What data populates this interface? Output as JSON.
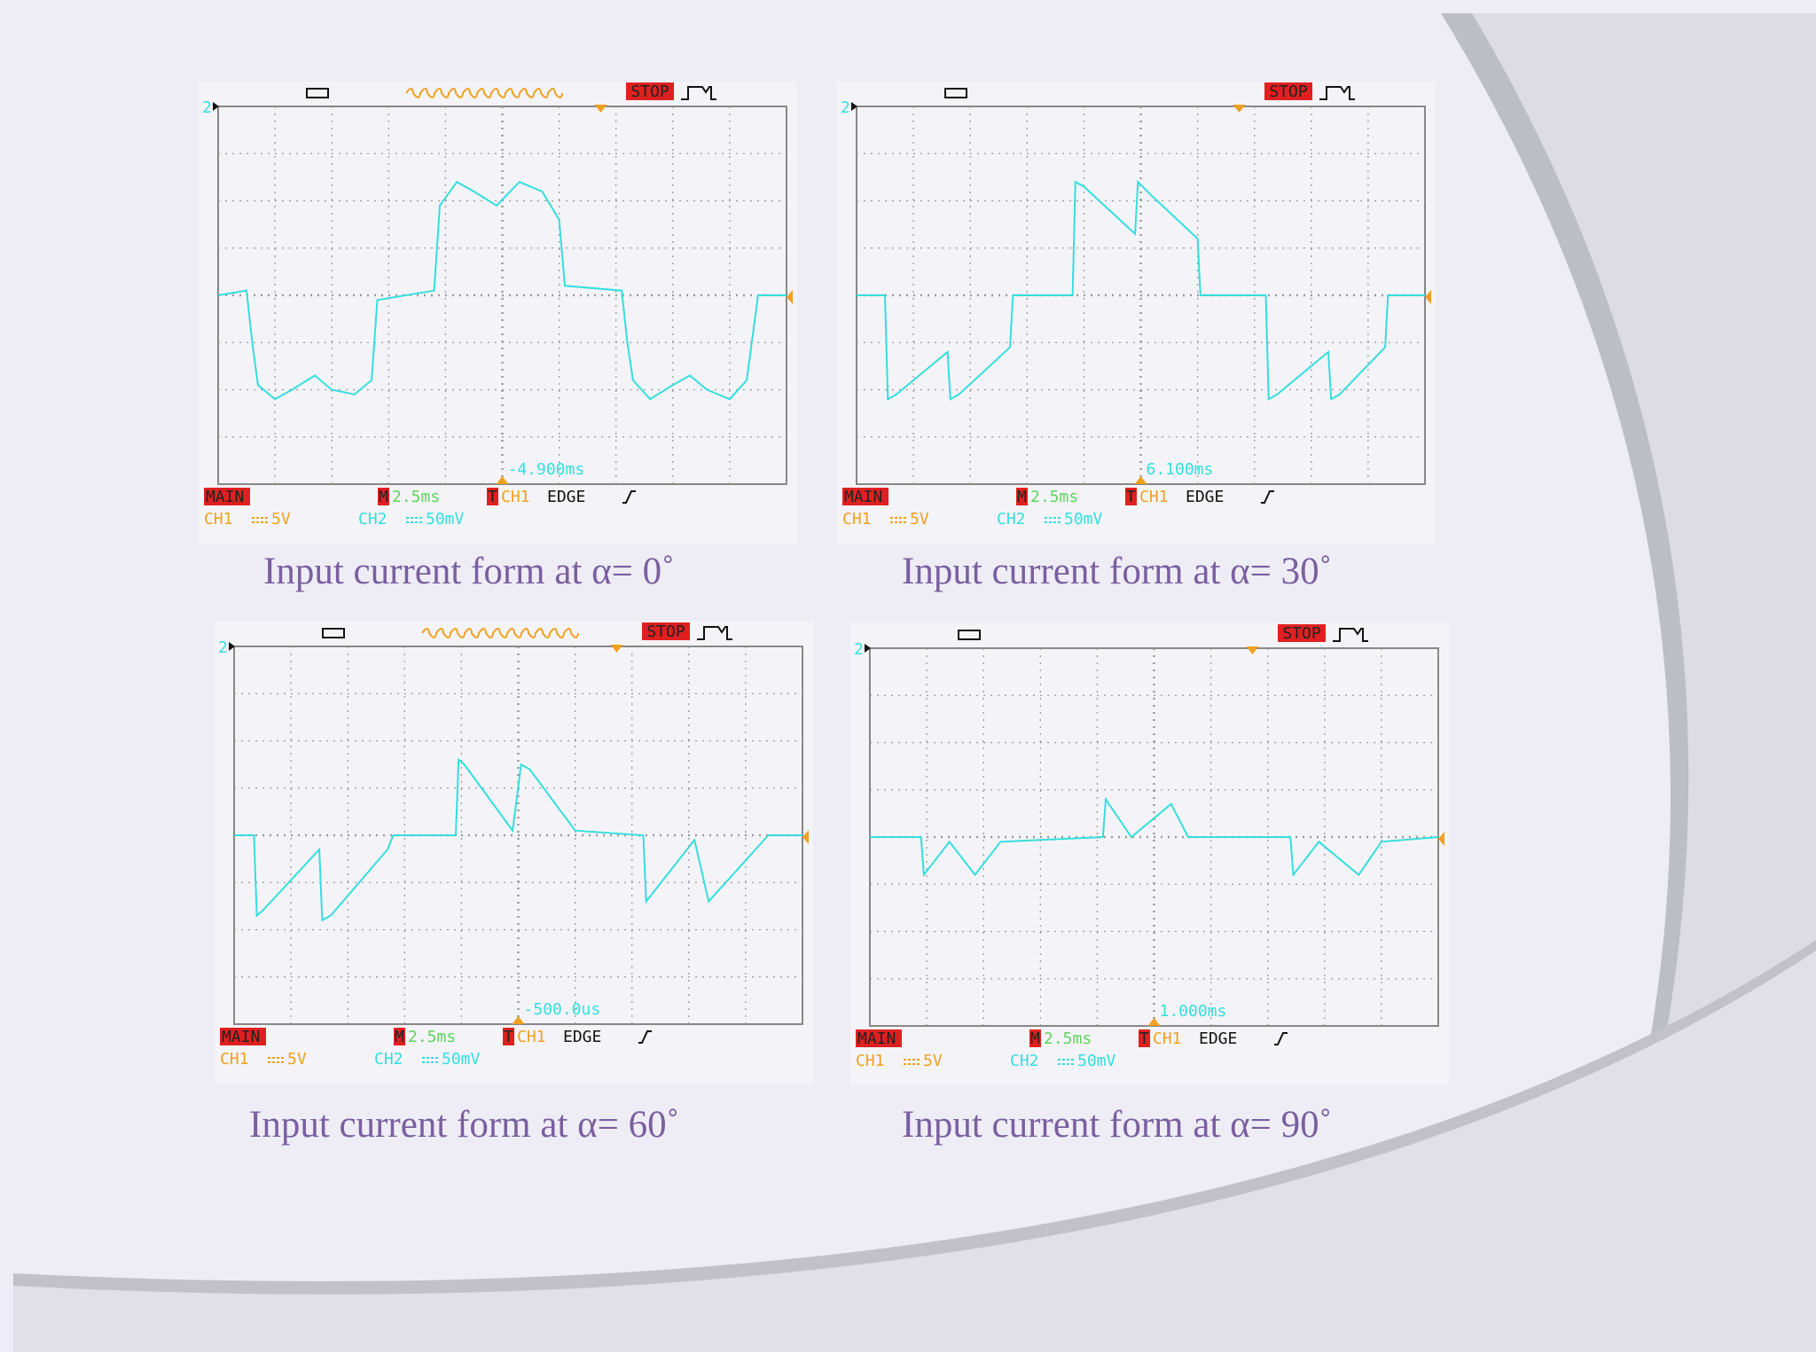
{
  "panels": [
    {
      "scope": {
        "status": "STOP",
        "mode": "MAIN",
        "timebase_tag": "M",
        "timebase": "2.5ms",
        "trigger_tag": "T",
        "trigger_source": "CH1",
        "trigger_type": "EDGE",
        "ch1_label": "CH1",
        "ch1_scale": "5V",
        "ch2_label": "CH2",
        "ch2_scale": "50mV",
        "trigger_offset": "-4.900ms",
        "channel_marker": "2"
      },
      "caption": "Input current form at α= 0˚"
    },
    {
      "scope": {
        "status": "STOP",
        "mode": "MAIN",
        "timebase_tag": "M",
        "timebase": "2.5ms",
        "trigger_tag": "T",
        "trigger_source": "CH1",
        "trigger_type": "EDGE",
        "ch1_label": "CH1",
        "ch1_scale": "5V",
        "ch2_label": "CH2",
        "ch2_scale": "50mV",
        "trigger_offset": "6.100ms",
        "channel_marker": "2"
      },
      "caption": "Input current form at α= 30˚"
    },
    {
      "scope": {
        "status": "STOP",
        "mode": "MAIN",
        "timebase_tag": "M",
        "timebase": "2.5ms",
        "trigger_tag": "T",
        "trigger_source": "CH1",
        "trigger_type": "EDGE",
        "ch1_label": "CH1",
        "ch1_scale": "5V",
        "ch2_label": "CH2",
        "ch2_scale": "50mV",
        "trigger_offset": "-500.0us",
        "channel_marker": "2"
      },
      "caption": "Input current form at α= 60˚"
    },
    {
      "scope": {
        "status": "STOP",
        "mode": "MAIN",
        "timebase_tag": "M",
        "timebase": "2.5ms",
        "trigger_tag": "T",
        "trigger_source": "CH1",
        "trigger_type": "EDGE",
        "ch1_label": "CH1",
        "ch1_scale": "5V",
        "ch2_label": "CH2",
        "ch2_scale": "50mV",
        "trigger_offset": "1.000ms",
        "channel_marker": "2"
      },
      "caption": "Input current form at α= 90˚"
    }
  ]
}
